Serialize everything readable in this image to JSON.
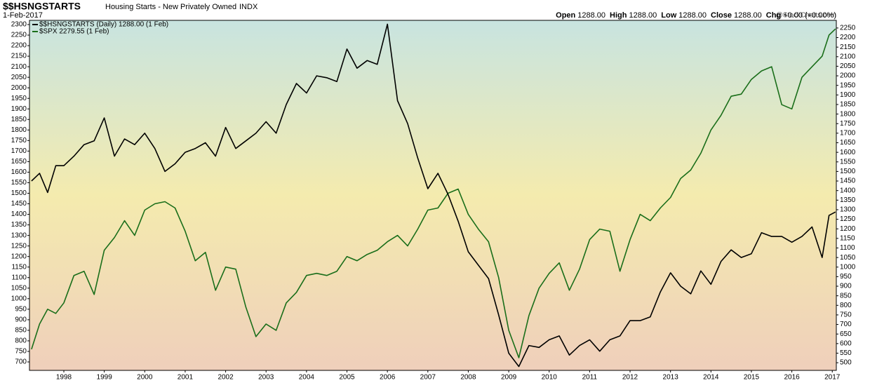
{
  "chart_data": {
    "type": "line",
    "title": "$$HSNGSTARTS",
    "subtitle": "Housing Starts - New Privately Owned",
    "exchange": "INDX",
    "date": "1-Feb-2017",
    "quote": [
      [
        "Open",
        "1288.00"
      ],
      [
        "High",
        "1288.00"
      ],
      [
        "Low",
        "1288.00"
      ],
      [
        "Close",
        "1288.00"
      ],
      [
        "Chg",
        "+0.00 (+0.00%)"
      ]
    ],
    "watermark": "@StockCharts.com",
    "legend": "top-left",
    "x": [
      1997.2,
      1997.4,
      1997.6,
      1997.8,
      1998,
      1998.25,
      1998.5,
      1998.75,
      1999,
      1999.25,
      1999.5,
      1999.75,
      2000,
      2000.25,
      2000.5,
      2000.75,
      2001,
      2001.25,
      2001.5,
      2001.75,
      2002,
      2002.25,
      2002.5,
      2002.75,
      2003,
      2003.25,
      2003.5,
      2003.75,
      2004,
      2004.25,
      2004.5,
      2004.75,
      2005,
      2005.25,
      2005.5,
      2005.75,
      2006,
      2006.25,
      2006.5,
      2006.75,
      2007,
      2007.25,
      2007.5,
      2007.75,
      2008,
      2008.25,
      2008.5,
      2008.75,
      2009,
      2009.25,
      2009.5,
      2009.75,
      2010,
      2010.25,
      2010.5,
      2010.75,
      2011,
      2011.25,
      2011.5,
      2011.75,
      2012,
      2012.25,
      2012.5,
      2012.75,
      2013,
      2013.25,
      2013.5,
      2013.75,
      2014,
      2014.25,
      2014.5,
      2014.75,
      2015,
      2015.25,
      2015.5,
      2015.75,
      2016,
      2016.25,
      2016.5,
      2016.75,
      2016.92,
      2017.08
    ],
    "series": [
      {
        "name": "$$HSNGSTARTS (Daily) 1288.00 (1 Feb)",
        "color": "#000000",
        "axis": "y2",
        "values": [
          1450,
          1490,
          1390,
          1530,
          1530,
          1580,
          1640,
          1660,
          1780,
          1580,
          1670,
          1640,
          1700,
          1620,
          1500,
          1540,
          1600,
          1620,
          1650,
          1580,
          1730,
          1620,
          1660,
          1700,
          1760,
          1700,
          1850,
          1960,
          1910,
          2000,
          1990,
          1970,
          2140,
          2040,
          2080,
          2060,
          2270,
          1870,
          1750,
          1570,
          1410,
          1490,
          1380,
          1240,
          1080,
          1010,
          940,
          750,
          550,
          480,
          590,
          580,
          620,
          640,
          540,
          590,
          620,
          560,
          620,
          640,
          720,
          720,
          740,
          870,
          970,
          900,
          860,
          980,
          910,
          1030,
          1090,
          1050,
          1070,
          1180,
          1160,
          1160,
          1130,
          1160,
          1210,
          1050,
          1270,
          1288
        ]
      },
      {
        "name": "$SPX 2279.55 (1 Feb)",
        "color": "#1a6e1a",
        "values": [
          760,
          880,
          950,
          930,
          980,
          1110,
          1130,
          1020,
          1230,
          1290,
          1370,
          1300,
          1420,
          1450,
          1460,
          1430,
          1320,
          1180,
          1220,
          1040,
          1150,
          1140,
          960,
          820,
          880,
          850,
          980,
          1030,
          1110,
          1120,
          1110,
          1130,
          1200,
          1180,
          1210,
          1230,
          1270,
          1300,
          1250,
          1330,
          1420,
          1430,
          1500,
          1520,
          1400,
          1330,
          1270,
          1100,
          850,
          720,
          920,
          1050,
          1120,
          1170,
          1040,
          1140,
          1280,
          1330,
          1320,
          1130,
          1280,
          1400,
          1370,
          1430,
          1480,
          1570,
          1610,
          1690,
          1800,
          1870,
          1960,
          1970,
          2040,
          2080,
          2100,
          1920,
          1900,
          2050,
          2100,
          2150,
          2250,
          2279.55
        ]
      }
    ],
    "xlim": [
      1997.15,
      2017.1
    ],
    "xticks": [
      1998,
      1999,
      2000,
      2001,
      2002,
      2003,
      2004,
      2005,
      2006,
      2007,
      2008,
      2009,
      2010,
      2011,
      2012,
      2013,
      2014,
      2015,
      2016,
      2017
    ],
    "ylim": [
      660,
      2320
    ],
    "yticks": [
      700,
      750,
      800,
      850,
      900,
      950,
      1000,
      1050,
      1100,
      1150,
      1200,
      1250,
      1300,
      1350,
      1400,
      1450,
      1500,
      1550,
      1600,
      1650,
      1700,
      1750,
      1800,
      1850,
      1900,
      1950,
      2000,
      2050,
      2100,
      2150,
      2200,
      2250,
      2300
    ],
    "y2lim": [
      460,
      2290
    ],
    "y2ticks": [
      500,
      550,
      600,
      650,
      700,
      750,
      800,
      850,
      900,
      950,
      1000,
      1050,
      1100,
      1150,
      1200,
      1250,
      1300,
      1350,
      1400,
      1450,
      1500,
      1550,
      1600,
      1650,
      1700,
      1750,
      1800,
      1850,
      1900,
      1950,
      2000,
      2050,
      2100,
      2150,
      2200,
      2250
    ],
    "grid": false
  }
}
